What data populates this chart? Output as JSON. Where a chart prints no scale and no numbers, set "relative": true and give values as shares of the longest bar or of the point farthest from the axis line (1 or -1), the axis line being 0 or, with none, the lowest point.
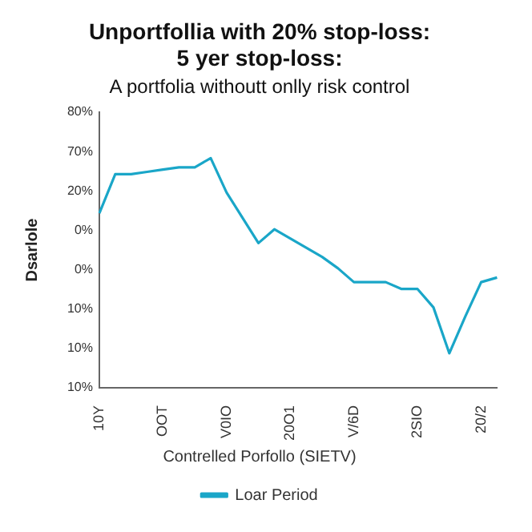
{
  "chart_data": {
    "type": "line",
    "title": "Unportfollia with 20% stop-loss:\n5 yer stop-loss:",
    "subtitle": "A portfolia withoutt onlly risk control",
    "ylabel": "Dsarlole",
    "legend_title": "Contrelled Porfollo (SIETV)",
    "categories": [
      "10Y",
      null,
      null,
      null,
      "OOT",
      null,
      null,
      null,
      "V0IO",
      null,
      null,
      null,
      "20O1",
      null,
      null,
      null,
      "V/6D",
      null,
      null,
      null,
      "2SIO",
      null,
      null,
      null,
      "20/2",
      null
    ],
    "series": [
      {
        "name": "Loar Period",
        "color": "#1aa6c8",
        "values": [
          0.76,
          0.93,
          0.93,
          0.94,
          0.95,
          0.96,
          0.96,
          1,
          0.85,
          0.74,
          0.63,
          0.69,
          0.65,
          0.61,
          0.57,
          0.52,
          0.46,
          0.46,
          0.46,
          0.43,
          0.43,
          0.35,
          0.15,
          0.31,
          0.46,
          0.48
        ]
      }
    ],
    "relative": true,
    "annotations": [
      "80%",
      "70%",
      "20%",
      "0%",
      "0%",
      "10%",
      "10%",
      "10%"
    ],
    "legend": "bottom",
    "marker": "none",
    "line_style": "solid"
  }
}
